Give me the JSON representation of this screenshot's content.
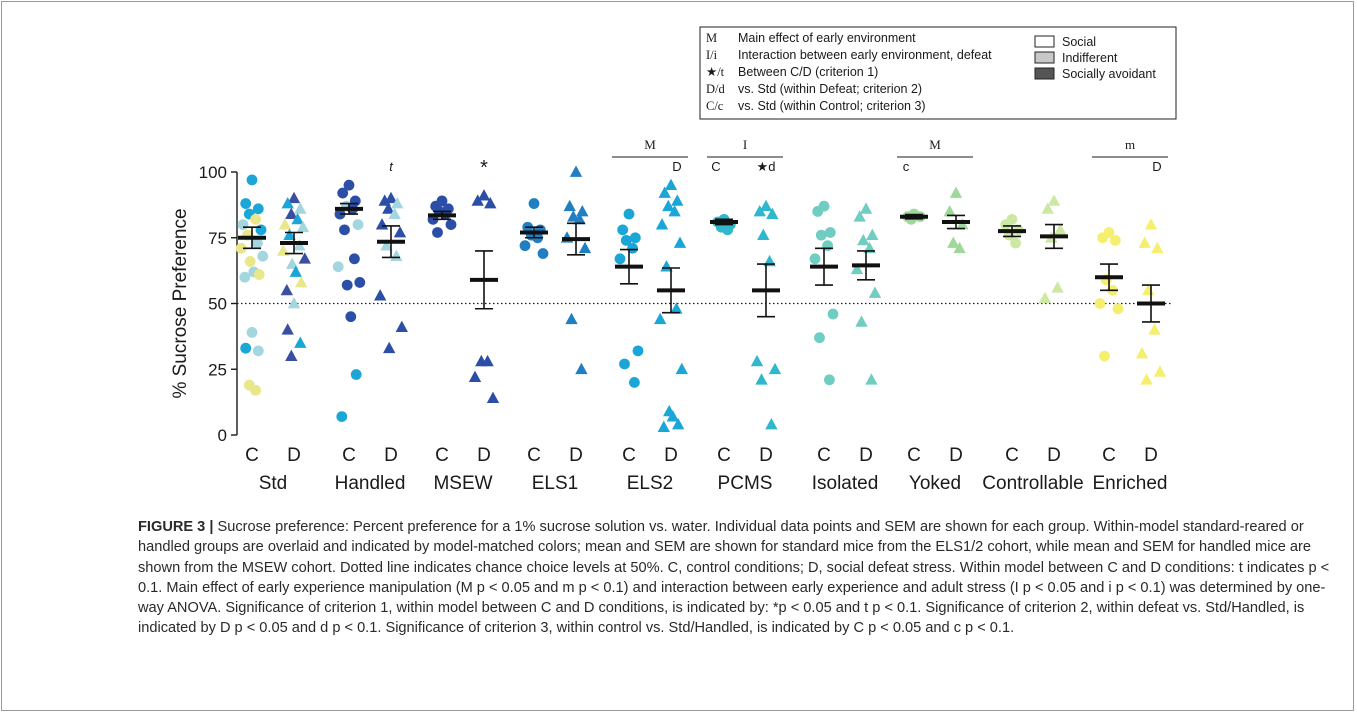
{
  "chart_data": {
    "type": "scatter",
    "ylabel": "% Sucrose Preference",
    "ylim": [
      0,
      100
    ],
    "yticks": [
      "0",
      "25",
      "50",
      "75",
      "100"
    ],
    "reference_line": {
      "y": 50,
      "style": "dotted"
    },
    "condition_labels": [
      "C",
      "D"
    ],
    "groups": [
      {
        "name": "Std",
        "color": "#1aa6d6",
        "C": {
          "mean": 75,
          "sem": 4,
          "points": [
            97,
            88,
            86,
            84,
            82,
            80,
            78,
            76,
            73,
            71,
            68,
            66,
            62,
            61,
            60,
            39,
            33,
            32,
            19,
            17
          ],
          "colors": [
            "#1aa6d6",
            "#1aa6d6",
            "#1aa6d6",
            "#1aa6d6",
            "#e9e78a",
            "#a4d6e0",
            "#1aa6d6",
            "#e9e78a",
            "#a4d6e0",
            "#e9e78a",
            "#a4d6e0",
            "#e9e78a",
            "#a4d6e0",
            "#e9e78a",
            "#a4d6e0",
            "#a4d6e0",
            "#1aa6d6",
            "#a4d6e0",
            "#e9e78a",
            "#e9e78a"
          ]
        },
        "D": {
          "mean": 73,
          "sem": 4,
          "points": [
            90,
            88,
            86,
            84,
            82,
            80,
            79,
            76,
            72,
            70,
            67,
            65,
            62,
            58,
            55,
            50,
            40,
            35,
            30
          ],
          "colors": [
            "#3a4fa0",
            "#1aa6d6",
            "#a4d6e0",
            "#3a4fa0",
            "#1aa6d6",
            "#e9e78a",
            "#a4d6e0",
            "#1aa6d6",
            "#a4d6e0",
            "#e9e78a",
            "#3a4fa0",
            "#a4d6e0",
            "#1aa6d6",
            "#e9e78a",
            "#3a4fa0",
            "#a4d6e0",
            "#3a4fa0",
            "#1aa6d6",
            "#3a4fa0"
          ]
        }
      },
      {
        "name": "Handled",
        "color": "#2b4ea6",
        "annotation_top": "",
        "annotation_D": "t",
        "C": {
          "mean": 86,
          "sem": 2,
          "points": [
            95,
            92,
            89,
            87,
            86,
            84,
            80,
            78,
            67,
            64,
            58,
            57,
            45,
            23,
            7
          ],
          "colors": [
            "#2b4ea6",
            "#2b4ea6",
            "#2b4ea6",
            "#a4d6e0",
            "#2b4ea6",
            "#2b4ea6",
            "#a4d6e0",
            "#2b4ea6",
            "#2b4ea6",
            "#a4d6e0",
            "#2b4ea6",
            "#2b4ea6",
            "#2b4ea6",
            "#1aa6d6",
            "#1aa6d6"
          ]
        },
        "D": {
          "mean": 73.5,
          "sem": 6,
          "points": [
            90,
            89,
            88,
            86,
            84,
            80,
            77,
            72,
            68,
            53,
            41,
            33
          ],
          "colors": [
            "#2b4ea6",
            "#2b4ea6",
            "#a4d6e0",
            "#2b4ea6",
            "#a4d6e0",
            "#2b4ea6",
            "#2b4ea6",
            "#a4d6e0",
            "#a4d6e0",
            "#2b4ea6",
            "#2b4ea6",
            "#2b4ea6"
          ]
        }
      },
      {
        "name": "MSEW",
        "color": "#2b4ea6",
        "annotation_D": "*",
        "C": {
          "mean": 83.5,
          "sem": 1.5,
          "points": [
            89,
            87,
            86,
            85,
            84,
            82,
            80,
            77
          ],
          "colors": []
        },
        "D": {
          "mean": 59,
          "sem": 11,
          "points": [
            91,
            89,
            88,
            28,
            28,
            22,
            14
          ],
          "colors": []
        }
      },
      {
        "name": "ELS1",
        "color": "#1f7fc2",
        "C": {
          "mean": 77,
          "sem": 2,
          "points": [
            88,
            79,
            78,
            76,
            75,
            72,
            69
          ],
          "colors": []
        },
        "D": {
          "mean": 74.5,
          "sem": 6,
          "points": [
            100,
            87,
            85,
            83,
            82,
            75,
            71,
            44,
            25
          ],
          "colors": []
        }
      },
      {
        "name": "ELS2",
        "color": "#1aa6d6",
        "annotation_top": "M",
        "annotation_D": "D",
        "C": {
          "mean": 64,
          "sem": 6.5,
          "points": [
            84,
            78,
            75,
            74,
            71,
            67,
            32,
            27,
            20
          ],
          "colors": []
        },
        "D": {
          "mean": 55,
          "sem": 8.5,
          "points": [
            95,
            92,
            89,
            87,
            85,
            80,
            73,
            64,
            48,
            44,
            25,
            9,
            7,
            4,
            3
          ],
          "colors": []
        }
      },
      {
        "name": "PCMS",
        "color": "#2fb8cc",
        "annotation_top": "I",
        "annotation_C": "C",
        "annotation_D": "★d",
        "C": {
          "mean": 81,
          "sem": 1,
          "points": [
            82,
            81,
            80,
            79,
            78
          ],
          "colors": []
        },
        "D": {
          "mean": 55,
          "sem": 10,
          "points": [
            87,
            85,
            84,
            76,
            66,
            28,
            25,
            21,
            4
          ],
          "colors": []
        }
      },
      {
        "name": "Isolated",
        "color": "#6fcdc2",
        "C": {
          "mean": 64,
          "sem": 7,
          "points": [
            87,
            85,
            77,
            76,
            72,
            67,
            46,
            37,
            21
          ],
          "colors": []
        },
        "D": {
          "mean": 64.5,
          "sem": 5.5,
          "points": [
            86,
            83,
            76,
            74,
            71,
            63,
            54,
            43,
            21
          ],
          "colors": []
        }
      },
      {
        "name": "Yoked",
        "color": "#9fd99a",
        "annotation_top": "M",
        "annotation_C": "c",
        "C": {
          "mean": 83,
          "sem": 0.8,
          "points": [
            84,
            83,
            83,
            82
          ],
          "colors": []
        },
        "D": {
          "mean": 81,
          "sem": 2.5,
          "points": [
            92,
            85,
            80,
            73,
            71
          ],
          "colors": []
        }
      },
      {
        "name": "Controllable",
        "color": "#cde8a3",
        "C": {
          "mean": 77.5,
          "sem": 2,
          "points": [
            82,
            80,
            78,
            76,
            73
          ],
          "colors": []
        },
        "D": {
          "mean": 75.5,
          "sem": 4.5,
          "points": [
            89,
            86,
            78,
            75,
            56,
            52
          ],
          "colors": []
        }
      },
      {
        "name": "Enriched",
        "color": "#f5ee6e",
        "annotation_top": "m",
        "annotation_D": "D",
        "C": {
          "mean": 60,
          "sem": 5,
          "points": [
            77,
            75,
            74,
            59,
            55,
            50,
            48,
            30
          ],
          "colors": []
        },
        "D": {
          "mean": 50,
          "sem": 7,
          "points": [
            80,
            73,
            71,
            55,
            40,
            31,
            24,
            21
          ],
          "colors": []
        }
      }
    ],
    "key": [
      {
        "symbol": "M",
        "text": "Main effect of early environment"
      },
      {
        "symbol": "I/i",
        "text": "Interaction between early environment, defeat"
      },
      {
        "symbol": "★/t",
        "text": "Between C/D (criterion 1)"
      },
      {
        "symbol": "D/d",
        "text": "vs. Std (within Defeat; criterion 2)"
      },
      {
        "symbol": "C/c",
        "text": "vs. Std (within Control; criterion 3)"
      }
    ],
    "legend": [
      {
        "name": "Social",
        "color": "#ffffff"
      },
      {
        "name": "Indifferent",
        "color": "#c8c8c8"
      },
      {
        "name": "Socially avoidant",
        "color": "#555555"
      }
    ]
  },
  "caption": {
    "label": "FIGURE 3 |",
    "text": " Sucrose preference: Percent preference for a 1% sucrose solution vs. water. Individual data points and SEM are shown for each group. Within-model standard-reared or handled groups are overlaid and indicated by model-matched colors; mean and SEM are shown for standard mice from the ELS1/2 cohort, while mean and SEM for handled mice are shown from the MSEW cohort. Dotted line indicates chance choice levels at 50%. C, control conditions; D, social defeat stress. Within model between C and D conditions: t indicates p < 0.1. Main effect of early experience manipulation (M p < 0.05 and m p < 0.1) and interaction between early experience and adult stress (I p < 0.05 and i p < 0.1) was determined by one-way ANOVA. Significance of criterion 1, within model between C and D conditions, is indicated by: *p < 0.05 and t p < 0.1. Significance of criterion 2, within defeat vs. Std/Handled, is indicated by D p < 0.05 and d p < 0.1. Significance of criterion 3, within control vs. Std/Handled, is indicated by C p < 0.05 and c p < 0.1."
  }
}
